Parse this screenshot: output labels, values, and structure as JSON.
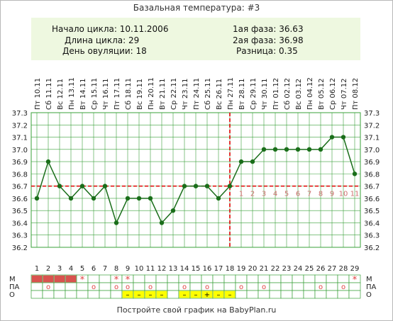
{
  "title": "Базальная температура: #3",
  "info": {
    "cycle_start": "Начало цикла: 10.11.2006",
    "cycle_length": "Длина цикла: 29",
    "ovulation_day": "День овуляции: 18",
    "phase1": "1ая фаза: 36.63",
    "phase2": "2ая фаза: 36.98",
    "difference": "Разница: 0.35"
  },
  "footer": "Постройте свой график на BabyPlan.ru",
  "colors": {
    "line": "#1a6e1a",
    "point": "#1a6e1a",
    "grid": "#3aa03a",
    "coverline": "#e00000",
    "phase_label": "#d07070",
    "info_bg": "#eef8e0",
    "m_fill": "#d9534f",
    "o_fill": "#ffff00"
  },
  "chart_data": {
    "type": "line",
    "title": "Базальная температура: #3",
    "x": [
      1,
      2,
      3,
      4,
      5,
      6,
      7,
      8,
      9,
      10,
      11,
      12,
      13,
      14,
      15,
      16,
      17,
      18,
      19,
      20,
      21,
      22,
      23,
      24,
      25,
      26,
      27,
      28,
      29
    ],
    "dates": [
      "Пт 10.11",
      "Сб 11.11",
      "Вс 12.11",
      "Пн 13.11",
      "Вт 14.11",
      "Ср 15.11",
      "Чт 16.11",
      "Пт 17.11",
      "Сб 18.11",
      "Вс 19.11",
      "Пн 20.11",
      "Вт 21.11",
      "Ср 22.11",
      "Чт 23.11",
      "Пт 24.11",
      "Сб 25.11",
      "Вс 26.11",
      "Пн 27.11",
      "Вт 28.11",
      "Ср 29.11",
      "Чт 30.11",
      "Пт 01.12",
      "Сб 02.12",
      "Вс 03.12",
      "Пн 04.12",
      "Вт 05.12",
      "Ср 06.12",
      "Чт 07.12",
      "Пт 08.12"
    ],
    "series": [
      {
        "values": [
          36.6,
          36.9,
          36.7,
          36.6,
          36.7,
          36.6,
          36.7,
          36.4,
          36.6,
          36.6,
          36.6,
          36.4,
          36.5,
          36.7,
          36.7,
          36.7,
          36.6,
          36.7,
          36.9,
          36.9,
          37.0,
          37.0,
          37.0,
          37.0,
          37.0,
          37.0,
          37.1,
          37.1,
          36.8
        ]
      }
    ],
    "ylim": [
      36.2,
      37.3
    ],
    "yticks": [
      "37.3",
      "37.2",
      "37.1",
      "37.0",
      "36.9",
      "36.8",
      "36.7",
      "36.6",
      "36.5",
      "36.4",
      "36.3",
      "36.2"
    ],
    "coverline": 36.7,
    "ovulation_day": 18,
    "phase_numbers": [
      "1",
      "2",
      "3",
      "4",
      "5",
      "6",
      "7",
      "8",
      "9",
      "10",
      "11"
    ],
    "grid": true,
    "legend": "none",
    "rows": [
      {
        "label": "М",
        "marks": [
          {
            "day": 1,
            "fill": true
          },
          {
            "day": 2,
            "fill": true
          },
          {
            "day": 3,
            "fill": true
          },
          {
            "day": 4,
            "fill": true
          },
          {
            "day": 5,
            "symbol": "*"
          },
          {
            "day": 8,
            "symbol": "*"
          },
          {
            "day": 9,
            "symbol": "*"
          },
          {
            "day": 29,
            "symbol": "*"
          }
        ]
      },
      {
        "label": "ПА",
        "marks": [
          {
            "day": 2,
            "symbol": "о"
          },
          {
            "day": 6,
            "symbol": "о"
          },
          {
            "day": 8,
            "symbol": "о"
          },
          {
            "day": 9,
            "symbol": "о"
          },
          {
            "day": 11,
            "symbol": "о"
          },
          {
            "day": 14,
            "symbol": "о"
          },
          {
            "day": 16,
            "symbol": "о"
          },
          {
            "day": 19,
            "symbol": "о"
          },
          {
            "day": 21,
            "symbol": "о"
          },
          {
            "day": 26,
            "symbol": "о"
          },
          {
            "day": 28,
            "symbol": "о"
          }
        ]
      },
      {
        "label": "О",
        "marks": [
          {
            "day": 9,
            "fill": true,
            "symbol": "–"
          },
          {
            "day": 10,
            "fill": true,
            "symbol": "–"
          },
          {
            "day": 11,
            "fill": true,
            "symbol": "–"
          },
          {
            "day": 12,
            "fill": true,
            "symbol": "–"
          },
          {
            "day": 14,
            "fill": true,
            "symbol": "–"
          },
          {
            "day": 15,
            "fill": true,
            "symbol": "–"
          },
          {
            "day": 16,
            "fill": true,
            "symbol": "+"
          },
          {
            "day": 17,
            "fill": true,
            "symbol": "–"
          },
          {
            "day": 18,
            "fill": true,
            "symbol": "–"
          }
        ]
      }
    ]
  }
}
